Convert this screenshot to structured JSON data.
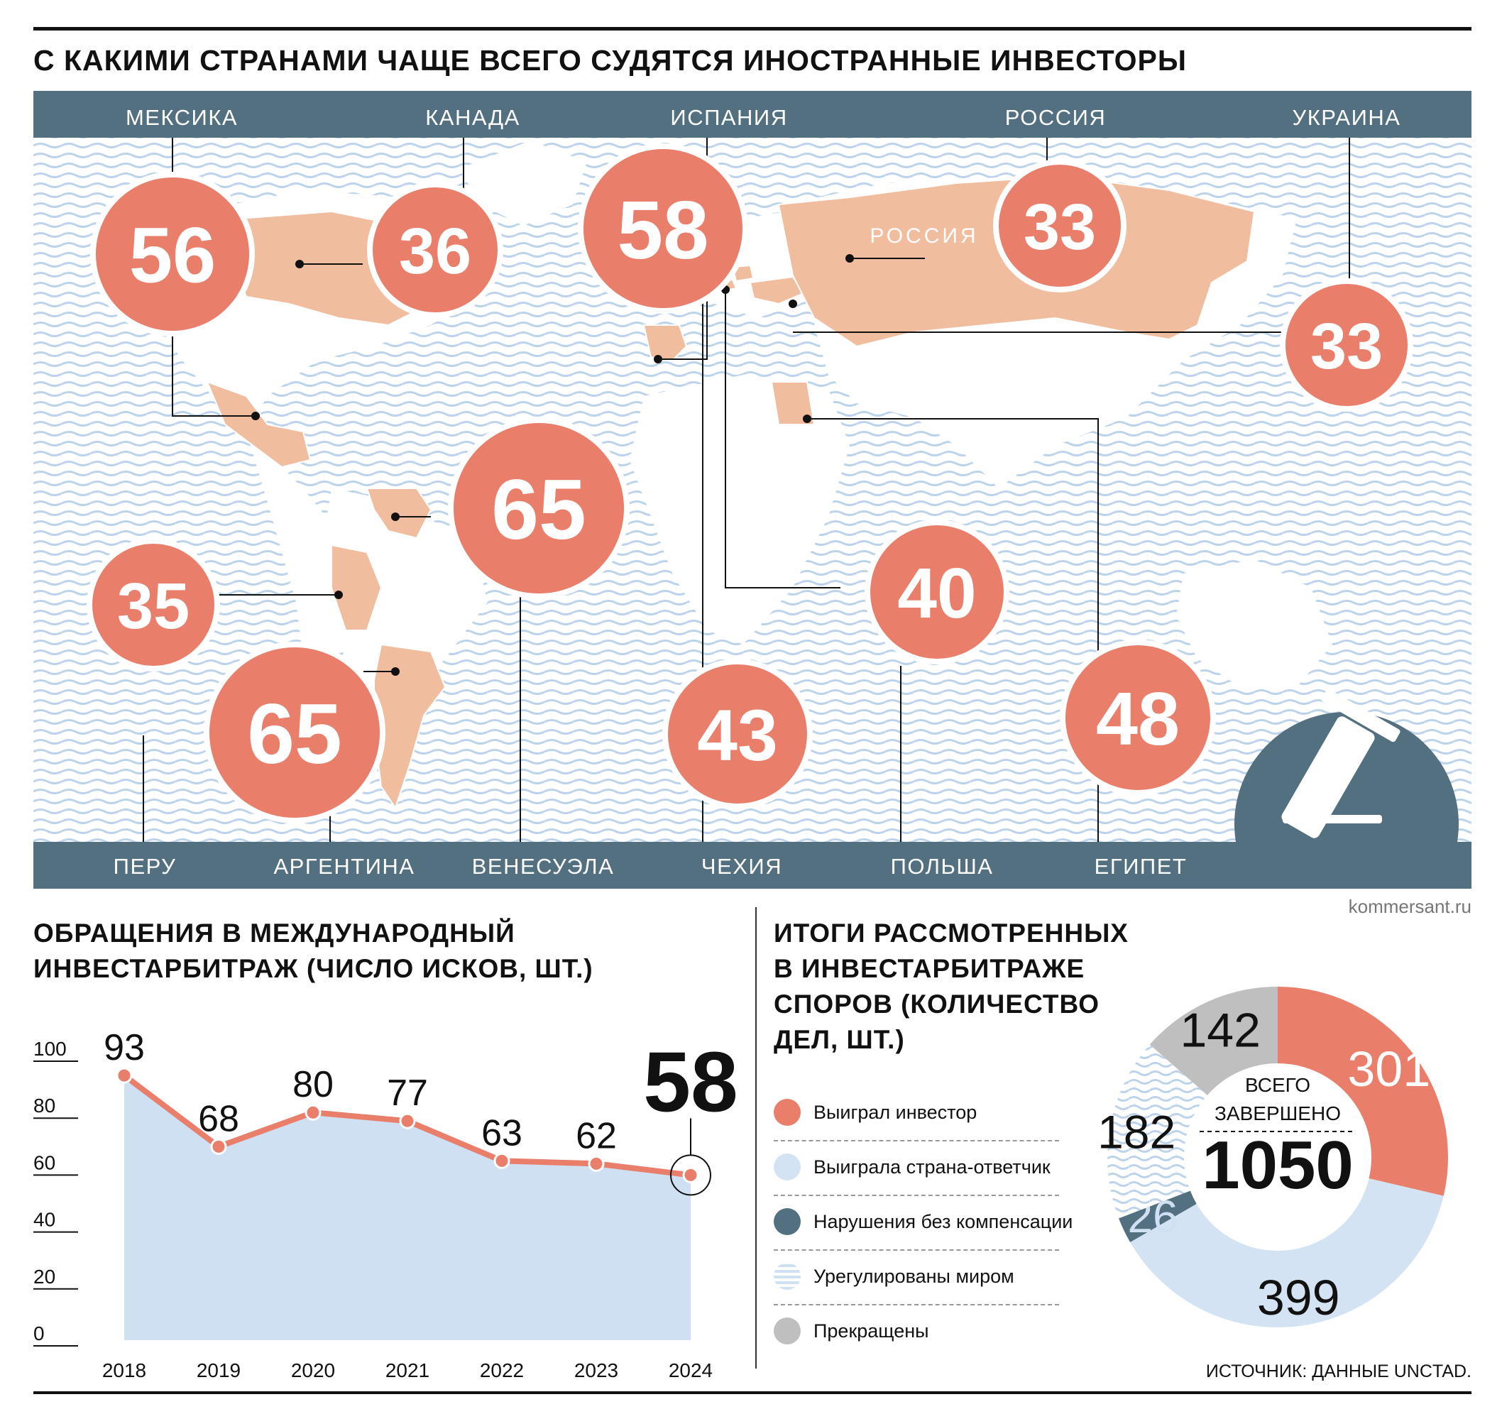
{
  "header": {
    "title": "С КАКИМИ СТРАНАМИ ЧАЩЕ ВСЕГО СУДЯТСЯ ИНОСТРАННЫЕ ИНВЕСТОРЫ"
  },
  "map": {
    "russia_label": "РОССИЯ",
    "top_countries": [
      {
        "name": "МЕКСИКА",
        "value": 56
      },
      {
        "name": "КАНАДА",
        "value": 36
      },
      {
        "name": "ИСПАНИЯ",
        "value": 58
      },
      {
        "name": "РОССИЯ",
        "value": 33
      },
      {
        "name": "УКРАИНА",
        "value": 33
      }
    ],
    "bottom_countries": [
      {
        "name": "ПЕРУ",
        "value": 35
      },
      {
        "name": "АРГЕНТИНА",
        "value": 65
      },
      {
        "name": "ВЕНЕСУЭЛА",
        "value": 65
      },
      {
        "name": "ЧЕХИЯ",
        "value": 43
      },
      {
        "name": "ПОЛЬША",
        "value": 40
      },
      {
        "name": "ЕГИПЕТ",
        "value": 48
      }
    ],
    "colors": {
      "bubble": "#e97e6b",
      "land": "#ffffff",
      "highlight": "#f1bd9f",
      "water": "#c9dbef",
      "band": "#52707f"
    }
  },
  "site": "kommersant.ru",
  "line_section": {
    "title_line1": "ОБРАЩЕНИЯ В МЕЖДУНАРОДНЫЙ",
    "title_line2": "ИНВЕСТАРБИТРАЖ (ЧИСЛО ИСКОВ, ШТ.)"
  },
  "donut_section": {
    "title_line1": "ИТОГИ РАССМОТРЕННЫХ",
    "title_line2": "В ИНВЕСТАРБИТРАЖЕ",
    "title_line3": "СПОРОВ (КОЛИЧЕСТВО",
    "title_line4": "ДЕЛ, ШТ.)",
    "center_label_line1": "ВСЕГО",
    "center_label_line2": "ЗАВЕРШЕНО",
    "total": "1050"
  },
  "source": "ИСТОЧНИК: ДАННЫЕ UNCTAD.",
  "chart_data": [
    {
      "type": "area",
      "title": "ОБРАЩЕНИЯ В МЕЖДУНАРОДНЫЙ ИНВЕСТАРБИТРАЖ (ЧИСЛО ИСКОВ, ШТ.)",
      "x": [
        "2018",
        "2019",
        "2020",
        "2021",
        "2022",
        "2023",
        "2024"
      ],
      "values": [
        93,
        68,
        80,
        77,
        63,
        62,
        58
      ],
      "y_ticks": [
        0,
        20,
        40,
        60,
        80,
        100
      ],
      "ylim": [
        0,
        100
      ],
      "highlight": {
        "label": "2024",
        "value": 58
      },
      "colors": {
        "line": "#e97e6b",
        "area": "#cfe0f3"
      }
    },
    {
      "type": "pie",
      "title": "ИТОГИ РАССМОТРЕННЫХ В ИНВЕСТАРБИТРАЖЕ СПОРОВ (КОЛИЧЕСТВО ДЕЛ, ШТ.)",
      "total": 1050,
      "slices": [
        {
          "label": "Выиграл инвестор",
          "value": 301,
          "color": "#e97e6b"
        },
        {
          "label": "Выиграла страна-ответчик",
          "value": 399,
          "color": "#d3e3f4"
        },
        {
          "label": "Нарушения без компенсации",
          "value": 26,
          "color": "#52707f"
        },
        {
          "label": "Урегулированы миром",
          "value": 182,
          "color": "#cfe0f3"
        },
        {
          "label": "Прекращены",
          "value": 142,
          "color": "#bfbfbf"
        }
      ]
    },
    {
      "type": "bar",
      "title": "С КАКИМИ СТРАНАМИ ЧАЩЕ ВСЕГО СУДЯТСЯ ИНОСТРАННЫЕ ИНВЕСТОРЫ",
      "categories": [
        "МЕКСИКА",
        "КАНАДА",
        "ИСПАНИЯ",
        "РОССИЯ",
        "УКРАИНА",
        "ПЕРУ",
        "АРГЕНТИНА",
        "ВЕНЕСУЭЛА",
        "ЧЕХИЯ",
        "ПОЛЬША",
        "ЕГИПЕТ"
      ],
      "values": [
        56,
        36,
        58,
        33,
        33,
        35,
        65,
        65,
        43,
        40,
        48
      ]
    }
  ]
}
